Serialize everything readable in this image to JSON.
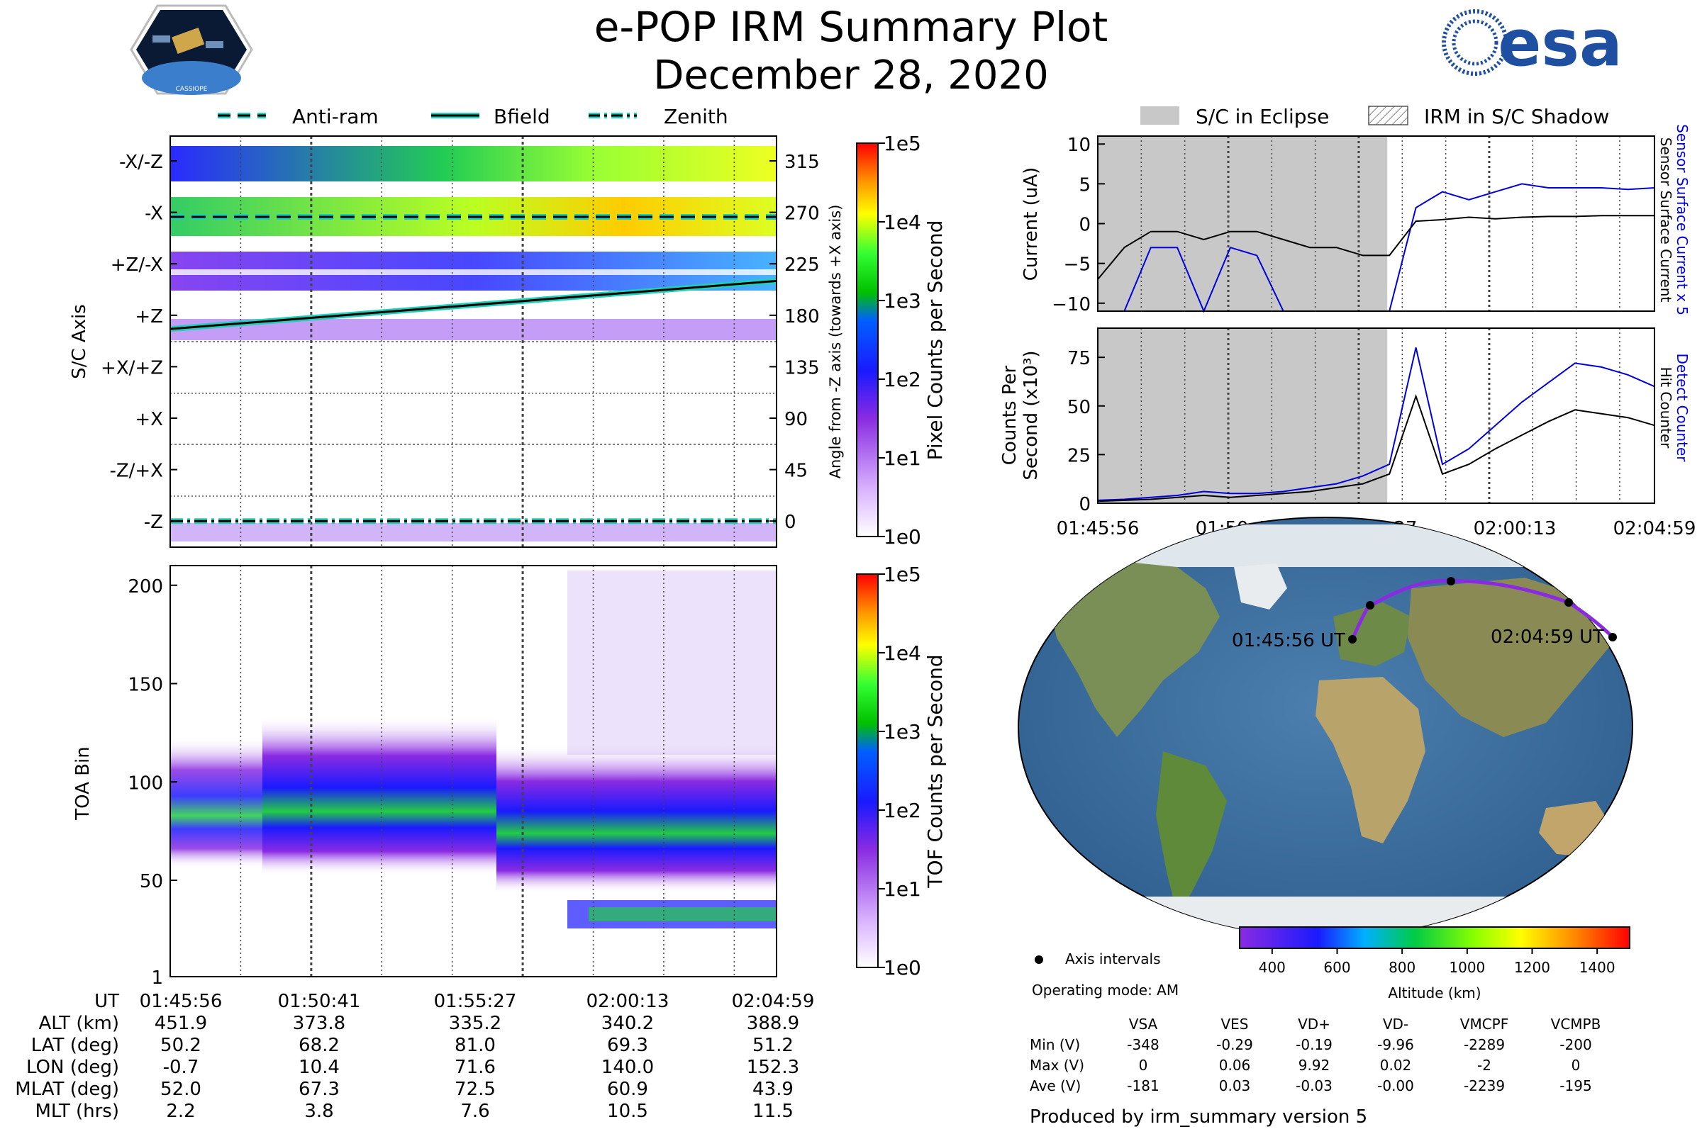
{
  "title": "e-POP IRM Summary Plot",
  "date": "December 28, 2020",
  "logos": {
    "left_text": "CASSIOPE",
    "right_text": "esa"
  },
  "legend_top": {
    "items": [
      "Anti-ram",
      "Bfield",
      "Zenith"
    ],
    "right_items": [
      "S/C in Eclipse",
      "IRM in S/C Shadow"
    ]
  },
  "time_ticks": [
    "01:45:56",
    "01:50:41",
    "01:55:27",
    "02:00:13",
    "02:04:59"
  ],
  "colors": {
    "teal": "#1fd1b8",
    "blue": "#0000dd",
    "eclipse": "#c8c8c8"
  },
  "chart_data": [
    {
      "type": "heatmap",
      "name": "sc_axis_spectrogram",
      "ylabel": "S/C Axis",
      "yticks": [
        "-X/-Z",
        "-X",
        "+Z/-X",
        "+Z",
        "+X/+Z",
        "+X",
        "-Z/+X",
        "-Z"
      ],
      "y2label": "Angle from -Z axis (towards +X axis)",
      "y2ticks": [
        "315",
        "270",
        "225",
        "180",
        "135",
        "90",
        "45",
        "0"
      ],
      "cbar_label": "Pixel Counts per Second",
      "cbar_ticks": [
        "1e5",
        "1e4",
        "1e3",
        "1e2",
        "1e1",
        "1e0"
      ],
      "series": [
        {
          "name": "Anti-ram",
          "angle_deg": [
            266,
            266
          ]
        },
        {
          "name": "Bfield",
          "angle_deg": [
            168,
            210
          ]
        },
        {
          "name": "Zenith",
          "angle_deg": [
            0,
            0
          ]
        }
      ]
    },
    {
      "type": "heatmap",
      "name": "toa_spectrogram",
      "ylabel": "TOA Bin",
      "yticks": [
        "200",
        "150",
        "100",
        "50",
        "1"
      ],
      "ylim": [
        1,
        210
      ],
      "cbar_label": "TOF Counts per Second",
      "cbar_ticks": [
        "1e5",
        "1e4",
        "1e3",
        "1e2",
        "1e1",
        "1e0"
      ]
    },
    {
      "type": "line",
      "name": "current",
      "ylabel": "Current (uA)",
      "yticks": [
        "10",
        "5",
        "0",
        "−5",
        "−10"
      ],
      "ylim": [
        -11,
        11
      ],
      "right_labels": [
        "Sensor Surface Current x 5",
        "Sensor Surface Current"
      ],
      "eclipse_until_fraction": 0.52,
      "series": [
        {
          "name": "Sensor Surface Current",
          "color": "#000000",
          "values": [
            -7,
            -3,
            -1,
            -1,
            -2,
            -1,
            -1,
            -2,
            -3,
            -3,
            -4,
            -4,
            0.3,
            0.5,
            0.8,
            0.6,
            0.8,
            0.9,
            0.9,
            1,
            1,
            1
          ]
        },
        {
          "name": "Sensor Surface Current x 5",
          "color": "#0000dd",
          "values": [
            -11,
            -11,
            -3,
            -3,
            -11,
            -3,
            -4,
            -11,
            -11,
            -11,
            -11,
            -11,
            2,
            4,
            3,
            4,
            5,
            4.5,
            4.5,
            4.5,
            4.3,
            4.5
          ]
        }
      ]
    },
    {
      "type": "line",
      "name": "counts",
      "ylabel_line1": "Counts Per",
      "ylabel_line2": "Second (x10³)",
      "yticks": [
        "75",
        "50",
        "25",
        "0"
      ],
      "ylim": [
        0,
        90
      ],
      "right_labels": [
        "Detect Counter",
        "Hit Counter"
      ],
      "eclipse_until_fraction": 0.52,
      "series": [
        {
          "name": "Hit Counter",
          "color": "#000000",
          "values": [
            1,
            1.5,
            2,
            3,
            4,
            3,
            4,
            5,
            6,
            8,
            10,
            15,
            55,
            15,
            20,
            28,
            35,
            42,
            48,
            46,
            44,
            40
          ]
        },
        {
          "name": "Detect Counter",
          "color": "#0000dd",
          "values": [
            1.5,
            2,
            3,
            4,
            6,
            5,
            5,
            6,
            8,
            10,
            14,
            20,
            80,
            20,
            28,
            40,
            52,
            62,
            72,
            70,
            66,
            60
          ]
        }
      ]
    }
  ],
  "map": {
    "start_label": "01:45:56 UT",
    "end_label": "02:04:59 UT",
    "legend_label": "Axis intervals",
    "cbar_label": "Altitude (km)",
    "cbar_ticks": [
      "400",
      "600",
      "800",
      "1000",
      "1200",
      "1400"
    ]
  },
  "ephemeris": {
    "labels": [
      "UT",
      "ALT (km)",
      "LAT (deg)",
      "LON (deg)",
      "MLAT (deg)",
      "MLT (hrs)"
    ],
    "columns": [
      [
        "01:45:56",
        "451.9",
        "50.2",
        "-0.7",
        "52.0",
        "2.2"
      ],
      [
        "01:50:41",
        "373.8",
        "68.2",
        "10.4",
        "67.3",
        "3.8"
      ],
      [
        "01:55:27",
        "335.2",
        "81.0",
        "71.6",
        "72.5",
        "7.6"
      ],
      [
        "02:00:13",
        "340.2",
        "69.3",
        "140.0",
        "60.9",
        "10.5"
      ],
      [
        "02:04:59",
        "388.9",
        "51.2",
        "152.3",
        "43.9",
        "11.5"
      ]
    ]
  },
  "operating_mode": "Operating mode: AM",
  "voltages": {
    "headers": [
      "VSA",
      "VES",
      "VD+",
      "VD-",
      "VMCPF",
      "VCMPB"
    ],
    "rows": [
      {
        "label": "Min (V)",
        "values": [
          "-348",
          "-0.29",
          "-0.19",
          "-9.96",
          "-2289",
          "-200"
        ]
      },
      {
        "label": "Max (V)",
        "values": [
          "0",
          "0.06",
          "9.92",
          "0.02",
          "-2",
          "0"
        ]
      },
      {
        "label": "Ave (V)",
        "values": [
          "-181",
          "0.03",
          "-0.03",
          "-0.00",
          "-2239",
          "-195"
        ]
      }
    ]
  },
  "footer": "Produced by irm_summary version 5"
}
